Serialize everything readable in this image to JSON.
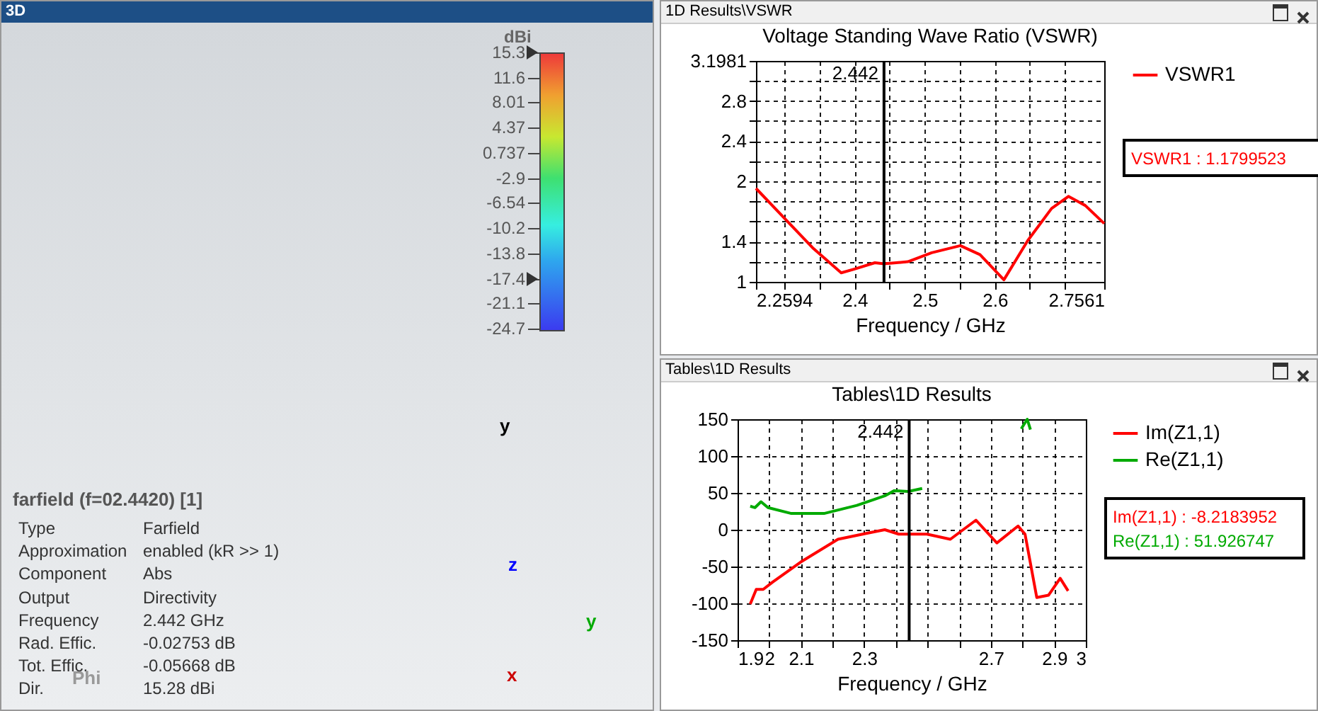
{
  "chart_data": [
    {
      "type": "other",
      "title": "3D",
      "clabel": "dBi",
      "annotations": [
        "farfield (f=02.4420) [1]",
        "Type",
        "Farfield",
        "Approximation",
        "enabled (kR >> 1)",
        "Component",
        "Abs",
        "Output",
        "Directivity",
        "Frequency",
        "2.442 GHz",
        "Rad. Effic.",
        "-0.02753 dB",
        "Tot. Effic.",
        "-0.05668 dB",
        "Dir.",
        "15.28 dBi",
        "15.3",
        "11.6",
        "8.01",
        "4.37",
        "0.737",
        "-2.9",
        "-6.54",
        "-10.2",
        "-13.8",
        "-17.4",
        "-21.1",
        "-24.7",
        "y",
        "z",
        "y",
        "x",
        "Phi"
      ]
    },
    {
      "type": "line",
      "title": "Voltage Standing Wave Ratio (VSWR)",
      "xlabel": "Frequency / GHz",
      "x": [
        2.2594,
        2.299,
        2.34,
        2.381,
        2.401,
        2.429,
        2.442,
        2.476,
        2.51,
        2.551,
        2.579,
        2.613,
        2.647,
        2.681,
        2.705,
        2.729,
        2.7561
      ],
      "series": [
        {
          "name": "VSWR1",
          "color": "#ff0000",
          "values": [
            1.93,
            1.64,
            1.34,
            1.09,
            1.13,
            1.19,
            1.18,
            1.2,
            1.29,
            1.36,
            1.27,
            1.02,
            1.41,
            1.73,
            1.85,
            1.76,
            1.58
          ]
        }
      ],
      "xlim": [
        2.2594,
        2.7561
      ],
      "xticks": [
        2.2594,
        {
          "value": 2.3,
          "label": null
        },
        {
          "value": 2.35,
          "label": null
        },
        2.4,
        {
          "value": 2.45,
          "label": null
        },
        2.5,
        {
          "value": 2.55,
          "label": null
        },
        2.6,
        {
          "value": 2.65,
          "label": null
        },
        {
          "value": 2.7,
          "label": null
        },
        2.7561
      ],
      "ylim": [
        1,
        3.1981
      ],
      "yticks": [
        1,
        {
          "value": 1.2,
          "label": null
        },
        1.4,
        {
          "value": 1.6,
          "label": null
        },
        {
          "value": 1.8,
          "label": null
        },
        2,
        {
          "value": 2.2,
          "label": null
        },
        2.4,
        {
          "value": 2.6,
          "label": null
        },
        2.8,
        {
          "value": 3,
          "label": null
        },
        3.1981
      ],
      "grid": true,
      "legend": "right",
      "ref_lines": [
        {
          "axis": "x",
          "value": 2.442,
          "label": "2.442"
        }
      ],
      "annotations": [
        "1D Results\\VSWR",
        "VSWR1 : 1.1799523"
      ]
    },
    {
      "type": "line",
      "title": "Tables\\1D Results",
      "xlabel": "Frequency / GHz",
      "series": [
        {
          "name": "Im(Z1,1)",
          "color": "#ff0000",
          "x": [
            1.94,
            1.959,
            1.981,
            2.011,
            2.099,
            2.217,
            2.306,
            2.365,
            2.409,
            2.498,
            2.572,
            2.653,
            2.719,
            2.786,
            2.808,
            2.845,
            2.882,
            2.919,
            2.944
          ],
          "values": [
            -101,
            -81,
            -81,
            -71,
            -44,
            -13,
            -5,
            0,
            -6,
            -6,
            -13,
            13,
            -18,
            5,
            -6,
            -92,
            -89,
            -66,
            -83
          ]
        },
        {
          "name": "Re(Z1,1)",
          "color": "#00aa00",
          "x": [
            1.94,
            1.955,
            1.974,
            1.996,
            2.07,
            2.173,
            2.277,
            2.365,
            2.395,
            2.439,
            2.483,
            2.6,
            2.796,
            2.815,
            2.825
          ],
          "values": [
            32,
            30,
            38,
            30,
            22,
            22,
            33,
            46,
            53,
            52,
            56,
            null,
            137,
            150,
            136
          ]
        }
      ],
      "xlim": [
        1.9,
        3
      ],
      "xticks": [
        1.9,
        2,
        2.1,
        {
          "value": 2.2,
          "label": null
        },
        2.3,
        {
          "value": 2.4,
          "label": null
        },
        {
          "value": 2.5,
          "label": null
        },
        {
          "value": 2.6,
          "label": null
        },
        2.7,
        {
          "value": 2.8,
          "label": null
        },
        2.9,
        3
      ],
      "ylim": [
        -150,
        150
      ],
      "yticks": [
        -150,
        -100,
        -50,
        0,
        50,
        100,
        150
      ],
      "grid": true,
      "legend": "right",
      "ref_lines": [
        {
          "axis": "x",
          "value": 2.442,
          "label": "2.442"
        }
      ],
      "annotations": [
        "Tables\\1D Results",
        "Im(Z1,1) : -8.2183952",
        "Re(Z1,1) : 51.926747"
      ]
    }
  ]
}
